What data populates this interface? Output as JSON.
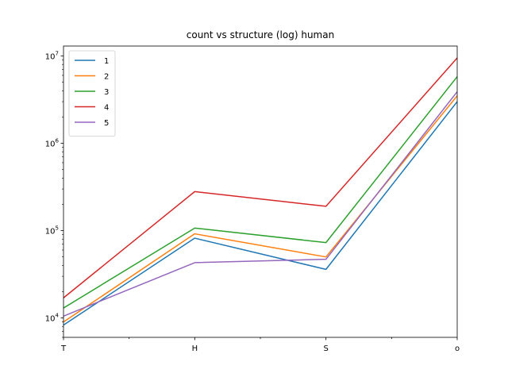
{
  "chart_data": {
    "type": "line",
    "title": "count vs structure (log) human",
    "xlabel": "",
    "ylabel": "",
    "categories": [
      "T",
      "H",
      "S",
      "o"
    ],
    "yscale": "log",
    "ylim": [
      6000,
      13000000
    ],
    "y_ticks": [
      {
        "value": 10000,
        "base": "10",
        "exp": "4"
      },
      {
        "value": 100000,
        "base": "10",
        "exp": "5"
      },
      {
        "value": 1000000,
        "base": "10",
        "exp": "6"
      },
      {
        "value": 10000000,
        "base": "10",
        "exp": "7"
      }
    ],
    "grid": false,
    "legend_position": "upper-left",
    "series": [
      {
        "name": "1",
        "color": "#1f77b4",
        "values": [
          8300,
          82000,
          36000,
          3000000
        ]
      },
      {
        "name": "2",
        "color": "#ff7f0e",
        "values": [
          9000,
          92000,
          50000,
          3500000
        ]
      },
      {
        "name": "3",
        "color": "#2ca02c",
        "values": [
          13000,
          107000,
          73000,
          5800000
        ]
      },
      {
        "name": "4",
        "color": "#d62728",
        "values": [
          17000,
          280000,
          190000,
          9500000
        ]
      },
      {
        "name": "5",
        "color": "#9467bd",
        "values": [
          10500,
          43000,
          47000,
          3900000
        ]
      }
    ]
  }
}
